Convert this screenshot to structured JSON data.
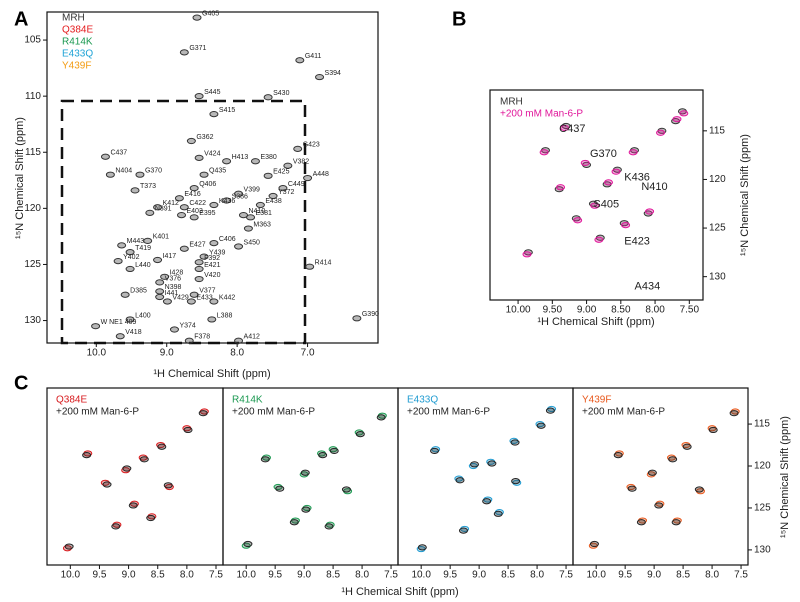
{
  "chart_data": [
    {
      "type": "scatter",
      "panel": "A",
      "xlabel": "¹H Chemical Shift (ppm)",
      "ylabel": "¹⁵N Chemical Shift (ppm)",
      "xlim": [
        10.7,
        6.0
      ],
      "ylim": [
        102.5,
        132
      ],
      "xticks": [
        {
          "value": 10,
          "label": "10.0"
        },
        {
          "value": 9,
          "label": "9.0"
        },
        {
          "value": 8,
          "label": "8.0"
        },
        {
          "value": 7,
          "label": "7.0"
        }
      ],
      "yticks": [
        105,
        110,
        115,
        120,
        125,
        130
      ],
      "series": [
        {
          "name": "MRH",
          "color": "#333333",
          "labels": [
            "G405",
            "G371",
            "G411",
            "S394",
            "S445",
            "S430",
            "S415",
            "G362",
            "V424",
            "H413",
            "E380",
            "G423",
            "V382",
            "C437",
            "N404",
            "G370",
            "Q435",
            "E425",
            "A448",
            "T373",
            "Q406",
            "C449",
            "V399",
            "Y372",
            "E416",
            "S386",
            "E438",
            "K436",
            "C422",
            "N391",
            "K412",
            "E403",
            "E395",
            "N410",
            "E381",
            "C406",
            "S450",
            "K401",
            "M363",
            "R414",
            "M443",
            "T419",
            "E427",
            "Y439",
            "Y402",
            "I417",
            "F392",
            "L440",
            "E421",
            "I428",
            "V420",
            "V376",
            "D385",
            "N398",
            "I441",
            "V377",
            "V429",
            "E433",
            "K442",
            "L400",
            "L388",
            "W NE1 409",
            "Y374",
            "G390",
            "V418",
            "F378",
            "A412"
          ],
          "x": [
            8.57,
            8.75,
            7.11,
            6.83,
            8.54,
            7.56,
            8.33,
            8.65,
            8.54,
            8.15,
            7.74,
            7.14,
            7.28,
            9.87,
            9.8,
            9.38,
            8.47,
            7.56,
            7.0,
            9.45,
            8.61,
            7.35,
            7.98,
            7.49,
            8.82,
            8.15,
            7.67,
            8.33,
            8.75,
            9.24,
            9.13,
            8.79,
            8.61,
            7.91,
            7.81,
            8.33,
            7.98,
            9.27,
            7.84,
            6.97,
            9.64,
            9.52,
            8.75,
            8.47,
            9.69,
            9.13,
            8.54,
            9.52,
            8.54,
            9.03,
            8.54,
            9.1,
            9.59,
            9.1,
            9.1,
            8.61,
            8.99,
            8.65,
            8.33,
            9.52,
            8.36,
            10.01,
            8.89,
            6.3,
            9.66,
            8.68,
            7.98
          ],
          "y": [
            103.0,
            106.1,
            106.8,
            108.3,
            110.0,
            110.1,
            111.6,
            114.0,
            115.5,
            115.8,
            115.8,
            114.7,
            116.2,
            115.4,
            117.0,
            117.0,
            117.0,
            117.1,
            117.3,
            118.4,
            118.2,
            118.2,
            118.7,
            118.9,
            119.1,
            119.3,
            119.7,
            119.7,
            119.9,
            120.4,
            119.9,
            120.6,
            120.8,
            120.6,
            120.8,
            123.1,
            123.4,
            122.9,
            121.8,
            125.2,
            123.3,
            123.9,
            123.6,
            124.3,
            124.7,
            124.6,
            124.8,
            125.4,
            125.4,
            126.1,
            126.3,
            126.6,
            127.7,
            127.4,
            127.9,
            127.7,
            128.3,
            128.3,
            128.3,
            129.9,
            129.9,
            130.5,
            130.8,
            129.8,
            131.4,
            131.8,
            131.8
          ]
        },
        {
          "name": "Q384E",
          "color": "#e41a1c"
        },
        {
          "name": "R414K",
          "color": "#1a9850"
        },
        {
          "name": "E433Q",
          "color": "#1fa3d6"
        },
        {
          "name": "Y439F",
          "color": "#f39c12"
        }
      ]
    },
    {
      "type": "scatter",
      "panel": "B",
      "xlabel": "¹H Chemical Shift (ppm)",
      "ylabel": "¹⁵N Chemical Shift (ppm)",
      "xlim": [
        10.41,
        7.3
      ],
      "ylim": [
        110.8,
        132.4
      ],
      "xticks": [
        {
          "value": 10,
          "label": "10.00"
        },
        {
          "value": 9.5,
          "label": "9.50"
        },
        {
          "value": 9,
          "label": "9.00"
        },
        {
          "value": 8.5,
          "label": "8.50"
        },
        {
          "value": 8,
          "label": "8.00"
        },
        {
          "value": 7.5,
          "label": "7.50"
        }
      ],
      "yticks": [
        115,
        120,
        125,
        130
      ],
      "series": [
        {
          "name": "MRH",
          "color": "#333333",
          "x": [
            9.85,
            9.6,
            9.4,
            9.3,
            9.15,
            9.0,
            8.9,
            8.8,
            8.7,
            8.55,
            8.45,
            8.3,
            8.1,
            7.9,
            7.7,
            7.6
          ],
          "y": [
            127.5,
            117,
            121,
            114.5,
            124,
            118.5,
            122.5,
            126,
            120.5,
            119,
            124.5,
            117,
            123.5,
            115,
            114,
            113
          ]
        },
        {
          "name": "+200 mM Man-6-P",
          "color": "#e0169a",
          "x": [
            9.87,
            9.62,
            9.38,
            9.32,
            9.13,
            9.02,
            8.88,
            8.82,
            8.68,
            8.57,
            8.43,
            8.32,
            8.08,
            7.92,
            7.68,
            7.58
          ],
          "y": [
            127.7,
            117.2,
            120.8,
            114.7,
            124.2,
            118.3,
            122.7,
            126.2,
            120.3,
            119.2,
            124.7,
            117.2,
            123.3,
            115.2,
            113.8,
            113.2
          ]
        }
      ],
      "annotations": {
        "labels": [
          "C437",
          "G370",
          "K436",
          "N410",
          "S405",
          "E423",
          "A434"
        ],
        "x": [
          9.4,
          8.95,
          8.45,
          8.2,
          8.9,
          8.45,
          8.3
        ],
        "y": [
          114.8,
          117.4,
          119.8,
          120.8,
          122.6,
          126.4,
          131.0
        ]
      }
    },
    {
      "type": "scatter",
      "panel": "C",
      "xlabel": "¹H Chemical Shift (ppm)",
      "xlim": [
        10.4,
        7.38
      ],
      "ylim": [
        110.7,
        131.8
      ],
      "xticks": [
        {
          "value": 10,
          "label": "10.0"
        },
        9.5,
        {
          "value": 9,
          "label": "9.0"
        },
        8.5,
        {
          "value": 8,
          "label": "8.0"
        },
        7.5
      ],
      "series": [
        {
          "name": "Q384E",
          "color": "#d7191c",
          "x": [
            10.05,
            9.7,
            9.4,
            9.2,
            9.05,
            8.9,
            8.75,
            8.6,
            8.45,
            8.3,
            8.0,
            7.7
          ],
          "y": [
            129.8,
            118.5,
            122,
            127,
            120.5,
            124.5,
            119,
            126,
            117.5,
            122.5,
            115.5,
            113.5
          ]
        },
        {
          "name": "+200 mM Man-6-P",
          "color": "#222222",
          "x": [
            10.02,
            9.72,
            9.37,
            9.22,
            9.03,
            8.92,
            8.73,
            8.62,
            8.43,
            8.32,
            7.98,
            7.72
          ],
          "y": [
            129.6,
            118.7,
            122.2,
            127.2,
            120.3,
            124.7,
            119.2,
            126.2,
            117.7,
            122.3,
            115.7,
            113.7
          ]
        }
      ]
    },
    {
      "type": "scatter",
      "xlim": [
        10.4,
        7.38
      ],
      "ylim": [
        110.7,
        131.8
      ],
      "xticks": [
        {
          "value": 10,
          "label": "10.0"
        },
        9.5,
        {
          "value": 9,
          "label": "9.0"
        },
        8.5,
        {
          "value": 8,
          "label": "8.0"
        },
        7.5
      ],
      "series": [
        {
          "name": "R414K",
          "color": "#1a9850",
          "x": [
            10.0,
            9.65,
            9.45,
            9.15,
            9.0,
            8.95,
            8.7,
            8.55,
            8.5,
            8.25,
            8.05,
            7.65
          ],
          "y": [
            129.5,
            119,
            122.5,
            126.5,
            121,
            125,
            118.5,
            127,
            118,
            123,
            116,
            114
          ]
        },
        {
          "name": "+200 mM Man-6-P",
          "color": "#222222",
          "x": [
            9.97,
            9.67,
            9.42,
            9.17,
            8.98,
            8.97,
            8.68,
            8.57,
            8.48,
            8.27,
            8.03,
            7.67
          ],
          "y": [
            129.3,
            119.2,
            122.7,
            126.7,
            120.8,
            125.2,
            118.7,
            127.2,
            118.2,
            122.8,
            116.2,
            114.2
          ]
        }
      ]
    },
    {
      "type": "scatter",
      "xlim": [
        10.4,
        7.38
      ],
      "ylim": [
        110.7,
        131.8
      ],
      "xticks": [
        {
          "value": 10,
          "label": "10.0"
        },
        9.5,
        {
          "value": 9,
          "label": "9.0"
        },
        8.5,
        {
          "value": 8,
          "label": "8.0"
        },
        7.5
      ],
      "series": [
        {
          "name": "E433Q",
          "color": "#1f9bd1",
          "x": [
            10.0,
            9.75,
            9.35,
            9.25,
            9.1,
            8.85,
            8.8,
            8.65,
            8.4,
            8.35,
            7.95,
            7.75
          ],
          "y": [
            129.9,
            118,
            121.5,
            127.5,
            120,
            124,
            119.5,
            125.5,
            117,
            122,
            115,
            113.2
          ]
        },
        {
          "name": "+200 mM Man-6-P",
          "color": "#222222",
          "x": [
            9.98,
            9.77,
            9.33,
            9.27,
            9.08,
            8.87,
            8.78,
            8.67,
            8.38,
            8.37,
            7.93,
            7.77
          ],
          "y": [
            129.7,
            118.2,
            121.7,
            127.7,
            119.8,
            124.2,
            119.7,
            125.7,
            117.2,
            121.8,
            115.2,
            113.4
          ]
        }
      ]
    },
    {
      "type": "scatter",
      "ylabel": "¹⁵N Chemical Shift (ppm)",
      "xlim": [
        10.4,
        7.38
      ],
      "ylim": [
        110.7,
        131.8
      ],
      "xticks": [
        {
          "value": 10,
          "label": "10.0"
        },
        9.5,
        {
          "value": 9,
          "label": "9.0"
        },
        8.5,
        {
          "value": 8,
          "label": "8.0"
        },
        7.5
      ],
      "yticks": [
        115,
        120,
        125,
        130
      ],
      "series": [
        {
          "name": "Y439F",
          "color": "#e8581c",
          "x": [
            10.05,
            9.6,
            9.4,
            9.2,
            9.05,
            8.9,
            8.7,
            8.6,
            8.45,
            8.2,
            8.0,
            7.6
          ],
          "y": [
            129.5,
            118.5,
            122.5,
            126.5,
            121,
            124.5,
            119,
            126.5,
            117.5,
            123,
            115.5,
            113.5
          ]
        },
        {
          "name": "+200 mM Man-6-P",
          "color": "#222222",
          "x": [
            10.03,
            9.62,
            9.38,
            9.22,
            9.03,
            8.92,
            8.68,
            8.62,
            8.43,
            8.22,
            7.98,
            7.62
          ],
          "y": [
            129.3,
            118.7,
            122.7,
            126.7,
            120.8,
            124.7,
            119.2,
            126.7,
            117.7,
            122.8,
            115.7,
            113.7
          ]
        }
      ]
    }
  ]
}
